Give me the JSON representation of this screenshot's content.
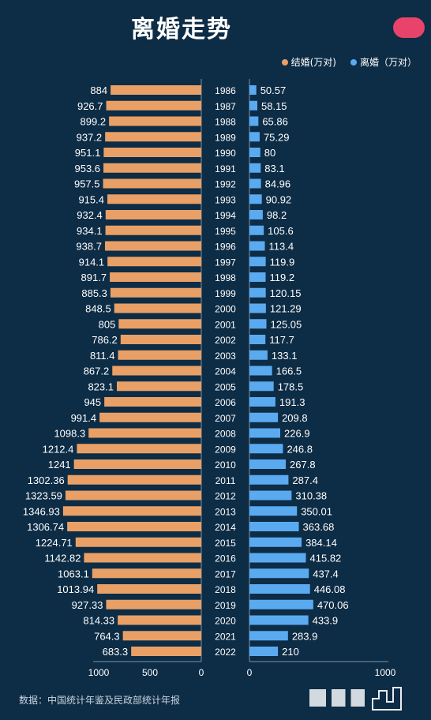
{
  "title": "离婚走势",
  "legend": {
    "marriage_label": "结婚(万对)",
    "divorce_label": "离婚（万对）"
  },
  "colors": {
    "marriage": "#e9a066",
    "divorce": "#5aaaf0",
    "background": "#0d2c45"
  },
  "source": "数据：中国统计年鉴及民政部统计年报",
  "chart_data": {
    "type": "bar",
    "orientation": "horizontal-butterfly",
    "categories": [
      "1986",
      "1987",
      "1988",
      "1989",
      "1990",
      "1991",
      "1992",
      "1993",
      "1994",
      "1995",
      "1996",
      "1997",
      "1998",
      "1999",
      "2000",
      "2001",
      "2002",
      "2003",
      "2004",
      "2005",
      "2006",
      "2007",
      "2008",
      "2009",
      "2010",
      "2011",
      "2012",
      "2013",
      "2014",
      "2015",
      "2016",
      "2017",
      "2018",
      "2019",
      "2020",
      "2021",
      "2022"
    ],
    "series": [
      {
        "name": "结婚(万对)",
        "values": [
          "884",
          "926.7",
          "899.2",
          "937.2",
          "951.1",
          "953.6",
          "957.5",
          "915.4",
          "932.4",
          "934.1",
          "938.7",
          "914.1",
          "891.7",
          "885.3",
          "848.5",
          "805",
          "786.2",
          "811.4",
          "867.2",
          "823.1",
          "945",
          "991.4",
          "1098.3",
          "1212.4",
          "1241",
          "1302.36",
          "1323.59",
          "1346.93",
          "1306.74",
          "1224.71",
          "1142.82",
          "1063.1",
          "1013.94",
          "927.33",
          "814.33",
          "764.3",
          "683.3"
        ]
      },
      {
        "name": "离婚（万对）",
        "values": [
          "50.57",
          "58.15",
          "65.86",
          "75.29",
          "80",
          "83.1",
          "84.96",
          "90.92",
          "98.2",
          "105.6",
          "113.4",
          "119.9",
          "119.2",
          "120.15",
          "121.29",
          "125.05",
          "117.7",
          "133.1",
          "166.5",
          "178.5",
          "191.3",
          "209.8",
          "226.9",
          "246.8",
          "267.8",
          "287.4",
          "310.38",
          "350.01",
          "363.68",
          "384.14",
          "415.82",
          "437.4",
          "446.08",
          "470.06",
          "433.9",
          "283.9",
          "210"
        ]
      }
    ],
    "left_axis": {
      "ticks": [
        "1000",
        "500",
        "0"
      ],
      "range": [
        0,
        1350
      ]
    },
    "right_axis": {
      "ticks": [
        "0",
        "1000"
      ],
      "range": [
        0,
        1000
      ]
    }
  }
}
